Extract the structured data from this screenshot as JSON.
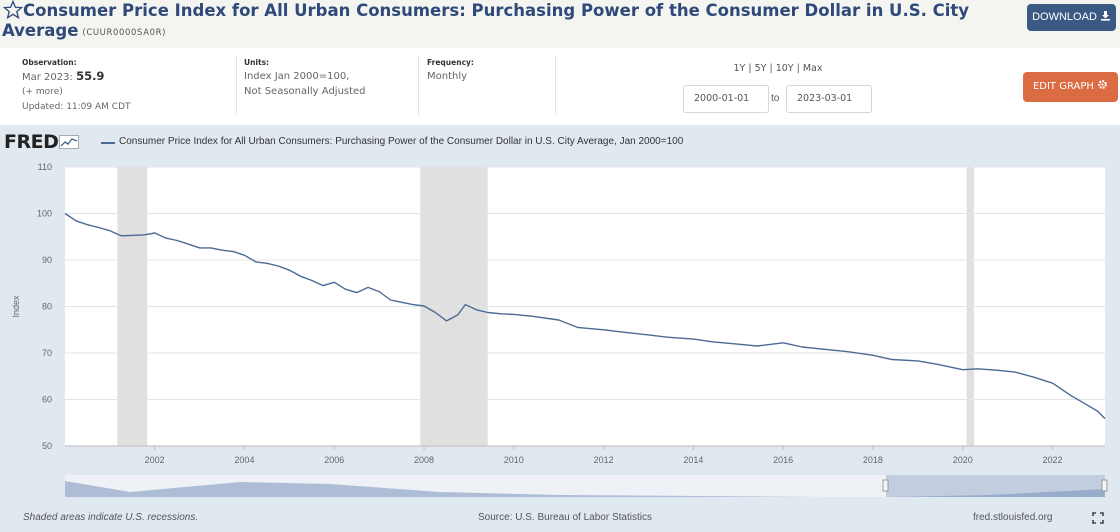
{
  "header": {
    "title": "Consumer Price Index for All Urban Consumers: Purchasing Power of the Consumer Dollar in U.S. City Average",
    "series_id": "(CUUR0000SA0R)",
    "download_label": "DOWNLOAD"
  },
  "meta": {
    "observation_label": "Observation:",
    "observation_date": "Mar 2023:",
    "observation_value": "55.9",
    "more_link": "(+ more)",
    "updated": "Updated: 11:09 AM CDT",
    "units_label": "Units:",
    "units_line1": "Index Jan 2000=100,",
    "units_line2": "Not Seasonally Adjusted",
    "frequency_label": "Frequency:",
    "frequency_value": "Monthly"
  },
  "controls": {
    "range_1y": "1Y",
    "range_5y": "5Y",
    "range_10y": "10Y",
    "range_max": "Max",
    "start_date": "2000-01-01",
    "to_label": "to",
    "end_date": "2023-03-01",
    "edit_graph_label": "EDIT GRAPH"
  },
  "chart_header": {
    "logo": "FRED",
    "legend": "Consumer Price Index for All Urban Consumers: Purchasing Power of the Consumer Dollar in U.S. City Average, Jan 2000=100"
  },
  "footer": {
    "recessions_note": "Shaded areas indicate U.S. recessions.",
    "source": "Source: U.S. Bureau of Labor Statistics",
    "site": "fred.stlouisfed.org"
  },
  "colors": {
    "line": "#4c6a94",
    "recession": "#e0e0e0",
    "title": "#2f4a7a",
    "download_button": "#3a5a84",
    "edit_button": "#db6b43"
  },
  "chart_data": {
    "type": "line",
    "title": "",
    "xlabel": "",
    "ylabel": "Index",
    "ylim": [
      50,
      110
    ],
    "xlim": [
      "2000-01-01",
      "2023-03-01"
    ],
    "yticks": [
      50,
      60,
      70,
      80,
      90,
      100,
      110
    ],
    "xticks": [
      "2002",
      "2004",
      "2006",
      "2008",
      "2010",
      "2012",
      "2014",
      "2016",
      "2018",
      "2020",
      "2022"
    ],
    "grid": "horizontal",
    "recessions": [
      {
        "start": "2001-03-01",
        "end": "2001-11-01"
      },
      {
        "start": "2007-12-01",
        "end": "2009-06-01"
      },
      {
        "start": "2020-02-01",
        "end": "2020-04-01"
      }
    ],
    "series": [
      {
        "name": "Consumer Price Index for All Urban Consumers: Purchasing Power of the Consumer Dollar in U.S. City Average, Jan 2000=100",
        "x": [
          "2000-01-01",
          "2000-04-01",
          "2000-07-01",
          "2000-10-01",
          "2001-01-01",
          "2001-04-01",
          "2001-07-01",
          "2001-10-01",
          "2002-01-01",
          "2002-04-01",
          "2002-07-01",
          "2002-10-01",
          "2003-01-01",
          "2003-04-01",
          "2003-07-01",
          "2003-10-01",
          "2004-01-01",
          "2004-04-01",
          "2004-07-01",
          "2004-10-01",
          "2005-01-01",
          "2005-04-01",
          "2005-07-01",
          "2005-10-01",
          "2006-01-01",
          "2006-04-01",
          "2006-07-01",
          "2006-10-01",
          "2007-01-01",
          "2007-04-01",
          "2007-07-01",
          "2007-10-01",
          "2008-01-01",
          "2008-04-01",
          "2008-07-01",
          "2008-10-01",
          "2008-12-01",
          "2009-03-01",
          "2009-06-01",
          "2009-10-01",
          "2010-01-01",
          "2010-06-01",
          "2011-01-01",
          "2011-06-01",
          "2012-01-01",
          "2012-06-01",
          "2013-01-01",
          "2013-06-01",
          "2014-01-01",
          "2014-06-01",
          "2015-01-01",
          "2015-06-01",
          "2016-01-01",
          "2016-06-01",
          "2017-01-01",
          "2017-06-01",
          "2018-01-01",
          "2018-06-01",
          "2019-01-01",
          "2019-06-01",
          "2020-01-01",
          "2020-05-01",
          "2020-10-01",
          "2021-03-01",
          "2021-08-01",
          "2022-01-01",
          "2022-06-01",
          "2022-09-01",
          "2023-01-01",
          "2023-03-01"
        ],
        "values": [
          100.0,
          98.4,
          97.6,
          97.0,
          96.3,
          95.2,
          95.3,
          95.4,
          95.8,
          94.7,
          94.2,
          93.4,
          92.6,
          92.6,
          92.1,
          91.8,
          91.0,
          89.6,
          89.3,
          88.7,
          87.8,
          86.5,
          85.6,
          84.5,
          85.2,
          83.7,
          83.0,
          84.1,
          83.2,
          81.4,
          80.9,
          80.4,
          80.1,
          78.7,
          76.9,
          78.2,
          80.4,
          79.3,
          78.7,
          78.4,
          78.3,
          77.9,
          77.1,
          75.5,
          75.0,
          74.5,
          73.9,
          73.4,
          73.0,
          72.4,
          71.9,
          71.5,
          72.2,
          71.3,
          70.7,
          70.3,
          69.5,
          68.6,
          68.3,
          67.6,
          66.4,
          66.6,
          66.3,
          65.9,
          64.8,
          63.5,
          60.8,
          59.4,
          57.5,
          55.9
        ]
      }
    ]
  }
}
